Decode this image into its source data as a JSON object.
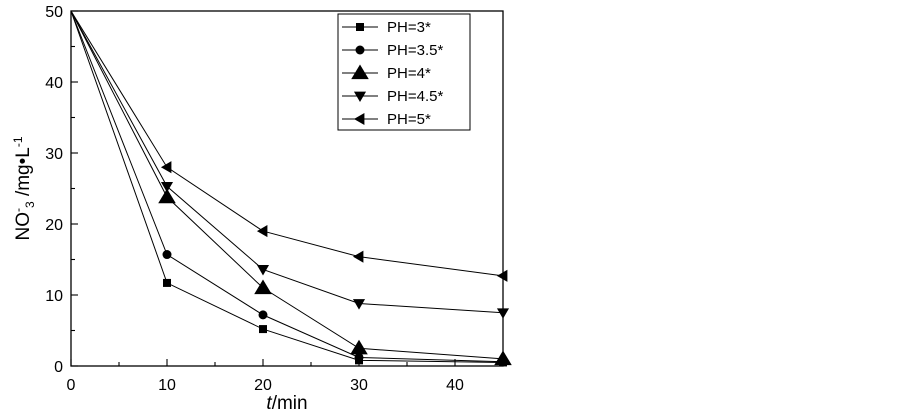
{
  "chart_data": {
    "type": "line",
    "x": [
      0,
      10,
      20,
      30,
      45
    ],
    "xlim": [
      0,
      45
    ],
    "ylim": [
      0,
      50
    ],
    "xticks": [
      0,
      10,
      20,
      30,
      40
    ],
    "yticks": [
      0,
      10,
      20,
      30,
      40,
      50
    ],
    "xtick_labels": [
      "0",
      "10",
      "20",
      "30",
      "40"
    ],
    "ytick_labels": [
      "0",
      "10",
      "20",
      "30",
      "40",
      "50"
    ],
    "xlabel": {
      "italic": "t",
      "rest": "/min"
    },
    "ylabel": {
      "main": "NO",
      "sup": "-",
      "sub": "3",
      "rest": " /mg•L",
      "unit_sup": "-1"
    },
    "grid": false,
    "legend_position": "top-right",
    "series": [
      {
        "name": "PH=3*",
        "marker": "square",
        "values": [
          50,
          11.7,
          5.2,
          0.8,
          0.5
        ]
      },
      {
        "name": "PH=3.5*",
        "marker": "circle",
        "values": [
          50,
          15.7,
          7.2,
          1.2,
          0.6
        ]
      },
      {
        "name": "PH=4*",
        "marker": "triangle-up",
        "values": [
          50,
          23.8,
          11.0,
          2.5,
          1.0
        ]
      },
      {
        "name": "PH=4.5*",
        "marker": "triangle-down",
        "values": [
          50,
          25.3,
          13.6,
          8.8,
          7.5
        ]
      },
      {
        "name": "PH=5*",
        "marker": "triangle-left",
        "values": [
          50,
          28.0,
          19.0,
          15.4,
          12.7
        ]
      }
    ]
  }
}
